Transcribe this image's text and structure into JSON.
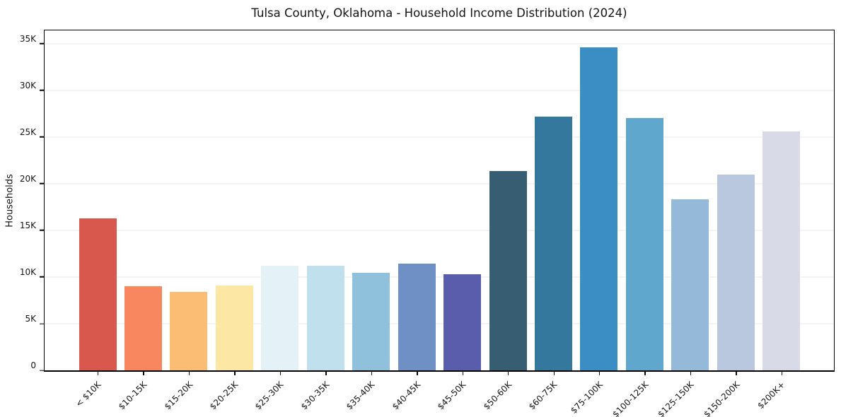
{
  "chart_data": {
    "type": "bar",
    "title": "Tulsa County, Oklahoma - Household Income Distribution (2024)",
    "xlabel": "",
    "ylabel": "Households",
    "ylim": [
      0,
      36400
    ],
    "grid": "horizontal-only",
    "legend": "none",
    "background": "#ffffff",
    "gridline_color": "#e9e9e9",
    "spine_color": "#000000",
    "y_ticks": [
      {
        "label": "0",
        "value": 0
      },
      {
        "label": "5K",
        "value": 5000
      },
      {
        "label": "10K",
        "value": 10000
      },
      {
        "label": "15K",
        "value": 15000
      },
      {
        "label": "20K",
        "value": 20000
      },
      {
        "label": "25K",
        "value": 25000
      },
      {
        "label": "30K",
        "value": 30000
      },
      {
        "label": "35K",
        "value": 35000
      }
    ],
    "categories": [
      "< $10K",
      "$10-15K",
      "$15-20K",
      "$20-25K",
      "$25-30K",
      "$30-35K",
      "$35-40K",
      "$40-45K",
      "$45-50K",
      "$50-60K",
      "$60-75K",
      "$75-100K",
      "$100-125K",
      "$125-150K",
      "$150-200K",
      "$200K+"
    ],
    "values": [
      16200,
      9000,
      8350,
      9100,
      11200,
      11150,
      10450,
      11400,
      10300,
      21300,
      27150,
      34500,
      26950,
      18250,
      20900,
      25550
    ],
    "bar_colors": [
      "#d9584e",
      "#f8875f",
      "#fbbc74",
      "#fce8a4",
      "#e4f1f6",
      "#c0e0ed",
      "#8fc0dc",
      "#6e90c5",
      "#5a5dab",
      "#375d72",
      "#35789e",
      "#3a8ec4",
      "#60a7cd",
      "#94b9d9",
      "#b9c8de",
      "#d8dae8"
    ]
  }
}
